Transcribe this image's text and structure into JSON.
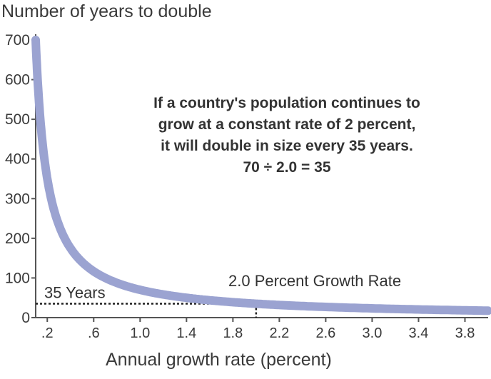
{
  "chart_data": {
    "type": "line",
    "title": "",
    "ylabel": "Number of years to double",
    "xlabel": "Annual growth rate (percent)",
    "xlim": [
      0.1,
      4.0
    ],
    "ylim": [
      0,
      700
    ],
    "y_ticks": [
      0,
      100,
      200,
      300,
      400,
      500,
      600,
      700
    ],
    "y_tick_labels": [
      "0",
      "100",
      "200",
      "300",
      "400",
      "500",
      "600",
      "700"
    ],
    "x_ticks": [
      0.2,
      0.6,
      1.0,
      1.4,
      1.8,
      2.2,
      2.6,
      3.0,
      3.4,
      3.8
    ],
    "x_tick_labels": [
      ".2",
      ".6",
      "1.0",
      "1.4",
      "1.8",
      "2.2",
      "2.6",
      "3.0",
      "3.4",
      "3.8"
    ],
    "series": [
      {
        "x": [
          0.1,
          0.15,
          0.2,
          0.25,
          0.3,
          0.4,
          0.5,
          0.6,
          0.8,
          1.0,
          1.2,
          1.4,
          1.6,
          1.8,
          2.0,
          2.4,
          2.8,
          3.2,
          3.6,
          4.0
        ],
        "y": [
          700,
          466.7,
          350,
          280,
          233.3,
          175,
          140,
          116.7,
          87.5,
          70,
          58.3,
          50,
          43.8,
          38.9,
          35,
          29.2,
          25,
          21.9,
          19.4,
          17.5
        ]
      }
    ],
    "highlight": {
      "x": 2.0,
      "y": 35
    },
    "annotations": {
      "years_label": "35 Years",
      "rate_label": "2.0 Percent Growth Rate",
      "callout_lines": [
        "If a country's population continues to",
        "grow at a constant rate of 2 percent,",
        "it will double in size every 35 years.",
        "70 ÷ 2.0 = 35"
      ]
    },
    "grid": false,
    "legend": "none"
  },
  "colors": {
    "curve": "#9ba3d1",
    "axis": "#555555",
    "text": "#333333"
  }
}
